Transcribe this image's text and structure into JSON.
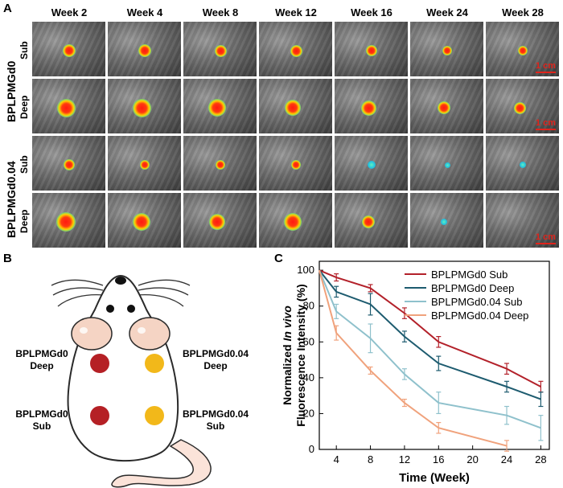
{
  "panel_a": {
    "label": "A",
    "weeks": [
      "Week 2",
      "Week 4",
      "Week 8",
      "Week 12",
      "Week 16",
      "Week 24",
      "Week 28"
    ],
    "groups": [
      {
        "name": "BPLPMGd0",
        "rows": [
          {
            "name": "Sub",
            "spot_sizes": [
              0.24,
              0.24,
              0.22,
              0.22,
              0.2,
              0.18,
              0.17
            ]
          },
          {
            "name": "Deep",
            "spot_sizes": [
              0.34,
              0.34,
              0.32,
              0.3,
              0.28,
              0.24,
              0.22
            ]
          }
        ]
      },
      {
        "name": "BPLPMGd0.04",
        "rows": [
          {
            "name": "Sub",
            "spot_sizes": [
              0.2,
              0.18,
              0.17,
              0.17,
              0.15,
              0.1,
              0.12
            ]
          },
          {
            "name": "Deep",
            "spot_sizes": [
              0.36,
              0.32,
              0.3,
              0.32,
              0.24,
              0.12,
              0.0
            ]
          }
        ]
      }
    ],
    "scale_bar": "1 cm"
  },
  "panel_b": {
    "label": "B",
    "labels": {
      "top_left": [
        "BPLPMGd0",
        "Deep"
      ],
      "top_right": [
        "BPLPMGd0.04",
        "Deep"
      ],
      "bottom_left": [
        "BPLPMGd0",
        "Sub"
      ],
      "bottom_right": [
        "BPLPMGd0.04",
        "Sub"
      ]
    },
    "colors": {
      "gd0": "#b52025",
      "gd004": "#f2b81a"
    }
  },
  "panel_c": {
    "label": "C"
  },
  "chart_data": {
    "type": "line",
    "title": "",
    "xlabel": "Time (Week)",
    "ylabel": "Normalized In vivo Fluorescence Intensity (%)",
    "ylabel_line1_pre": "Normalized ",
    "ylabel_line1_italic": "In vivo",
    "ylabel_line2": "Fluorescence Intensity (%)",
    "xlim": [
      2,
      29
    ],
    "ylim": [
      0,
      105
    ],
    "xticks": [
      4,
      8,
      12,
      16,
      20,
      24,
      28
    ],
    "yticks": [
      0,
      20,
      40,
      60,
      80,
      100
    ],
    "legend_position": "top-right",
    "series": [
      {
        "name": "BPLPMGd0 Sub",
        "color": "#b3212a",
        "x": [
          2,
          4,
          8,
          12,
          16,
          24,
          28
        ],
        "y": [
          100,
          96,
          90,
          76,
          60,
          45,
          35
        ],
        "err": [
          0,
          2,
          2,
          3,
          3,
          3,
          3
        ]
      },
      {
        "name": "BPLPMGd0 Deep",
        "color": "#1d5b6f",
        "x": [
          2,
          4,
          8,
          12,
          16,
          24,
          28
        ],
        "y": [
          100,
          88,
          81,
          63,
          48,
          35,
          28
        ],
        "err": [
          0,
          3,
          6,
          3,
          4,
          3,
          4
        ]
      },
      {
        "name": "BPLPMGd0.04 Sub",
        "color": "#8fc1cc",
        "x": [
          2,
          4,
          8,
          12,
          16,
          24,
          28
        ],
        "y": [
          100,
          77,
          62,
          42,
          26,
          19,
          12
        ],
        "err": [
          0,
          4,
          8,
          3,
          6,
          5,
          7
        ]
      },
      {
        "name": "BPLPMGd0.04 Deep",
        "color": "#f0a27c",
        "x": [
          2,
          4,
          8,
          12,
          16,
          24
        ],
        "y": [
          100,
          65,
          44,
          26,
          12,
          2
        ],
        "err": [
          0,
          4,
          2,
          2,
          3,
          3
        ]
      }
    ]
  }
}
